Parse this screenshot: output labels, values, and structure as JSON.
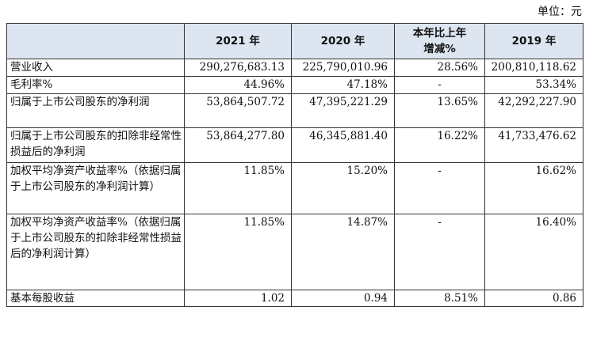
{
  "unit_label": "单位：元",
  "table": {
    "headers": [
      "",
      "2021 年",
      "2020 年",
      "本年比上年\n增减%",
      "2019 年"
    ],
    "rows": [
      {
        "label": "营业收入",
        "v2021": "290,276,683.13",
        "v2020": "225,790,010.96",
        "change": "28.56%",
        "v2019": "200,810,118.62"
      },
      {
        "label": "毛利率%",
        "v2021": "44.96%",
        "v2020": "47.18%",
        "change": "-",
        "v2019": "53.34%"
      },
      {
        "label": "归属于上市公司股东的净利润",
        "v2021": "53,864,507.72",
        "v2020": "47,395,221.29",
        "change": "13.65%",
        "v2019": "42,292,227.90"
      },
      {
        "label": "归属于上市公司股东的扣除非经常性损益后的净利润",
        "v2021": "53,864,277.80",
        "v2020": "46,345,881.40",
        "change": "16.22%",
        "v2019": "41,733,476.62"
      },
      {
        "label": "加权平均净资产收益率%（依据归属于上市公司股东的净利润计算）",
        "v2021": "11.85%",
        "v2020": "15.20%",
        "change": "-",
        "v2019": "16.62%"
      },
      {
        "label": "加权平均净资产收益率%（依据归属于上市公司股东的扣除非经常性损益后的净利润计算）",
        "v2021": "11.85%",
        "v2020": "14.87%",
        "change": "-",
        "v2019": "16.40%"
      },
      {
        "label": "基本每股收益",
        "v2021": "1.02",
        "v2020": "0.94",
        "change": "8.51%",
        "v2019": "0.86"
      }
    ]
  }
}
